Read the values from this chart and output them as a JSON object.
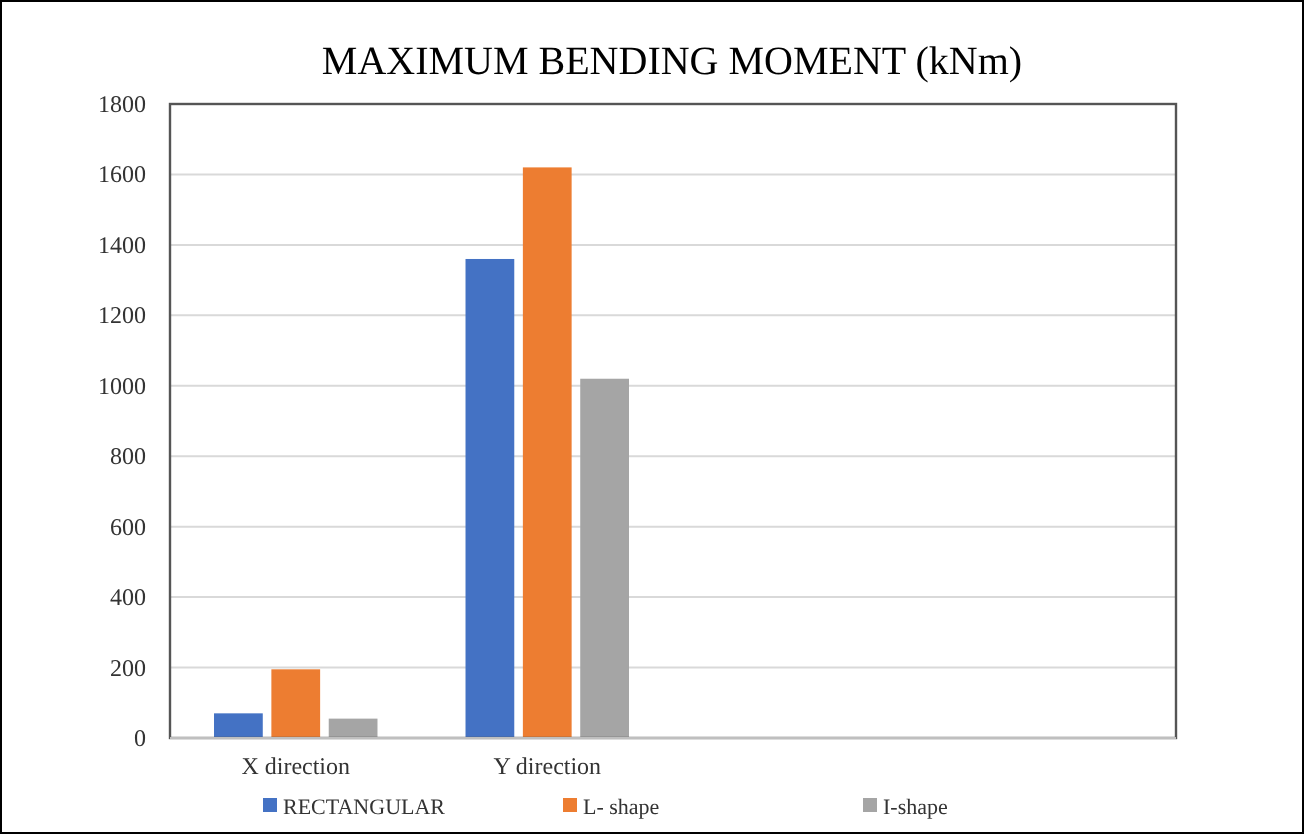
{
  "chart_data": {
    "type": "bar",
    "title": "MAXIMUM BENDING MOMENT (kNm)",
    "categories": [
      "X direction",
      "Y direction",
      null,
      null
    ],
    "series": [
      {
        "name": "RECTANGULAR",
        "color": "#4472c4",
        "values": [
          70,
          1360,
          null,
          null
        ]
      },
      {
        "name": "L- shape",
        "color": "#ed7d31",
        "values": [
          195,
          1620,
          null,
          null
        ]
      },
      {
        "name": "I-shape",
        "color": "#a5a5a5",
        "values": [
          55,
          1020,
          null,
          null
        ]
      }
    ],
    "ylim": [
      0,
      1800
    ],
    "yticks": [
      0,
      200,
      400,
      600,
      800,
      1000,
      1200,
      1400,
      1600,
      1800
    ],
    "grid": "y",
    "legend": "bottom"
  }
}
